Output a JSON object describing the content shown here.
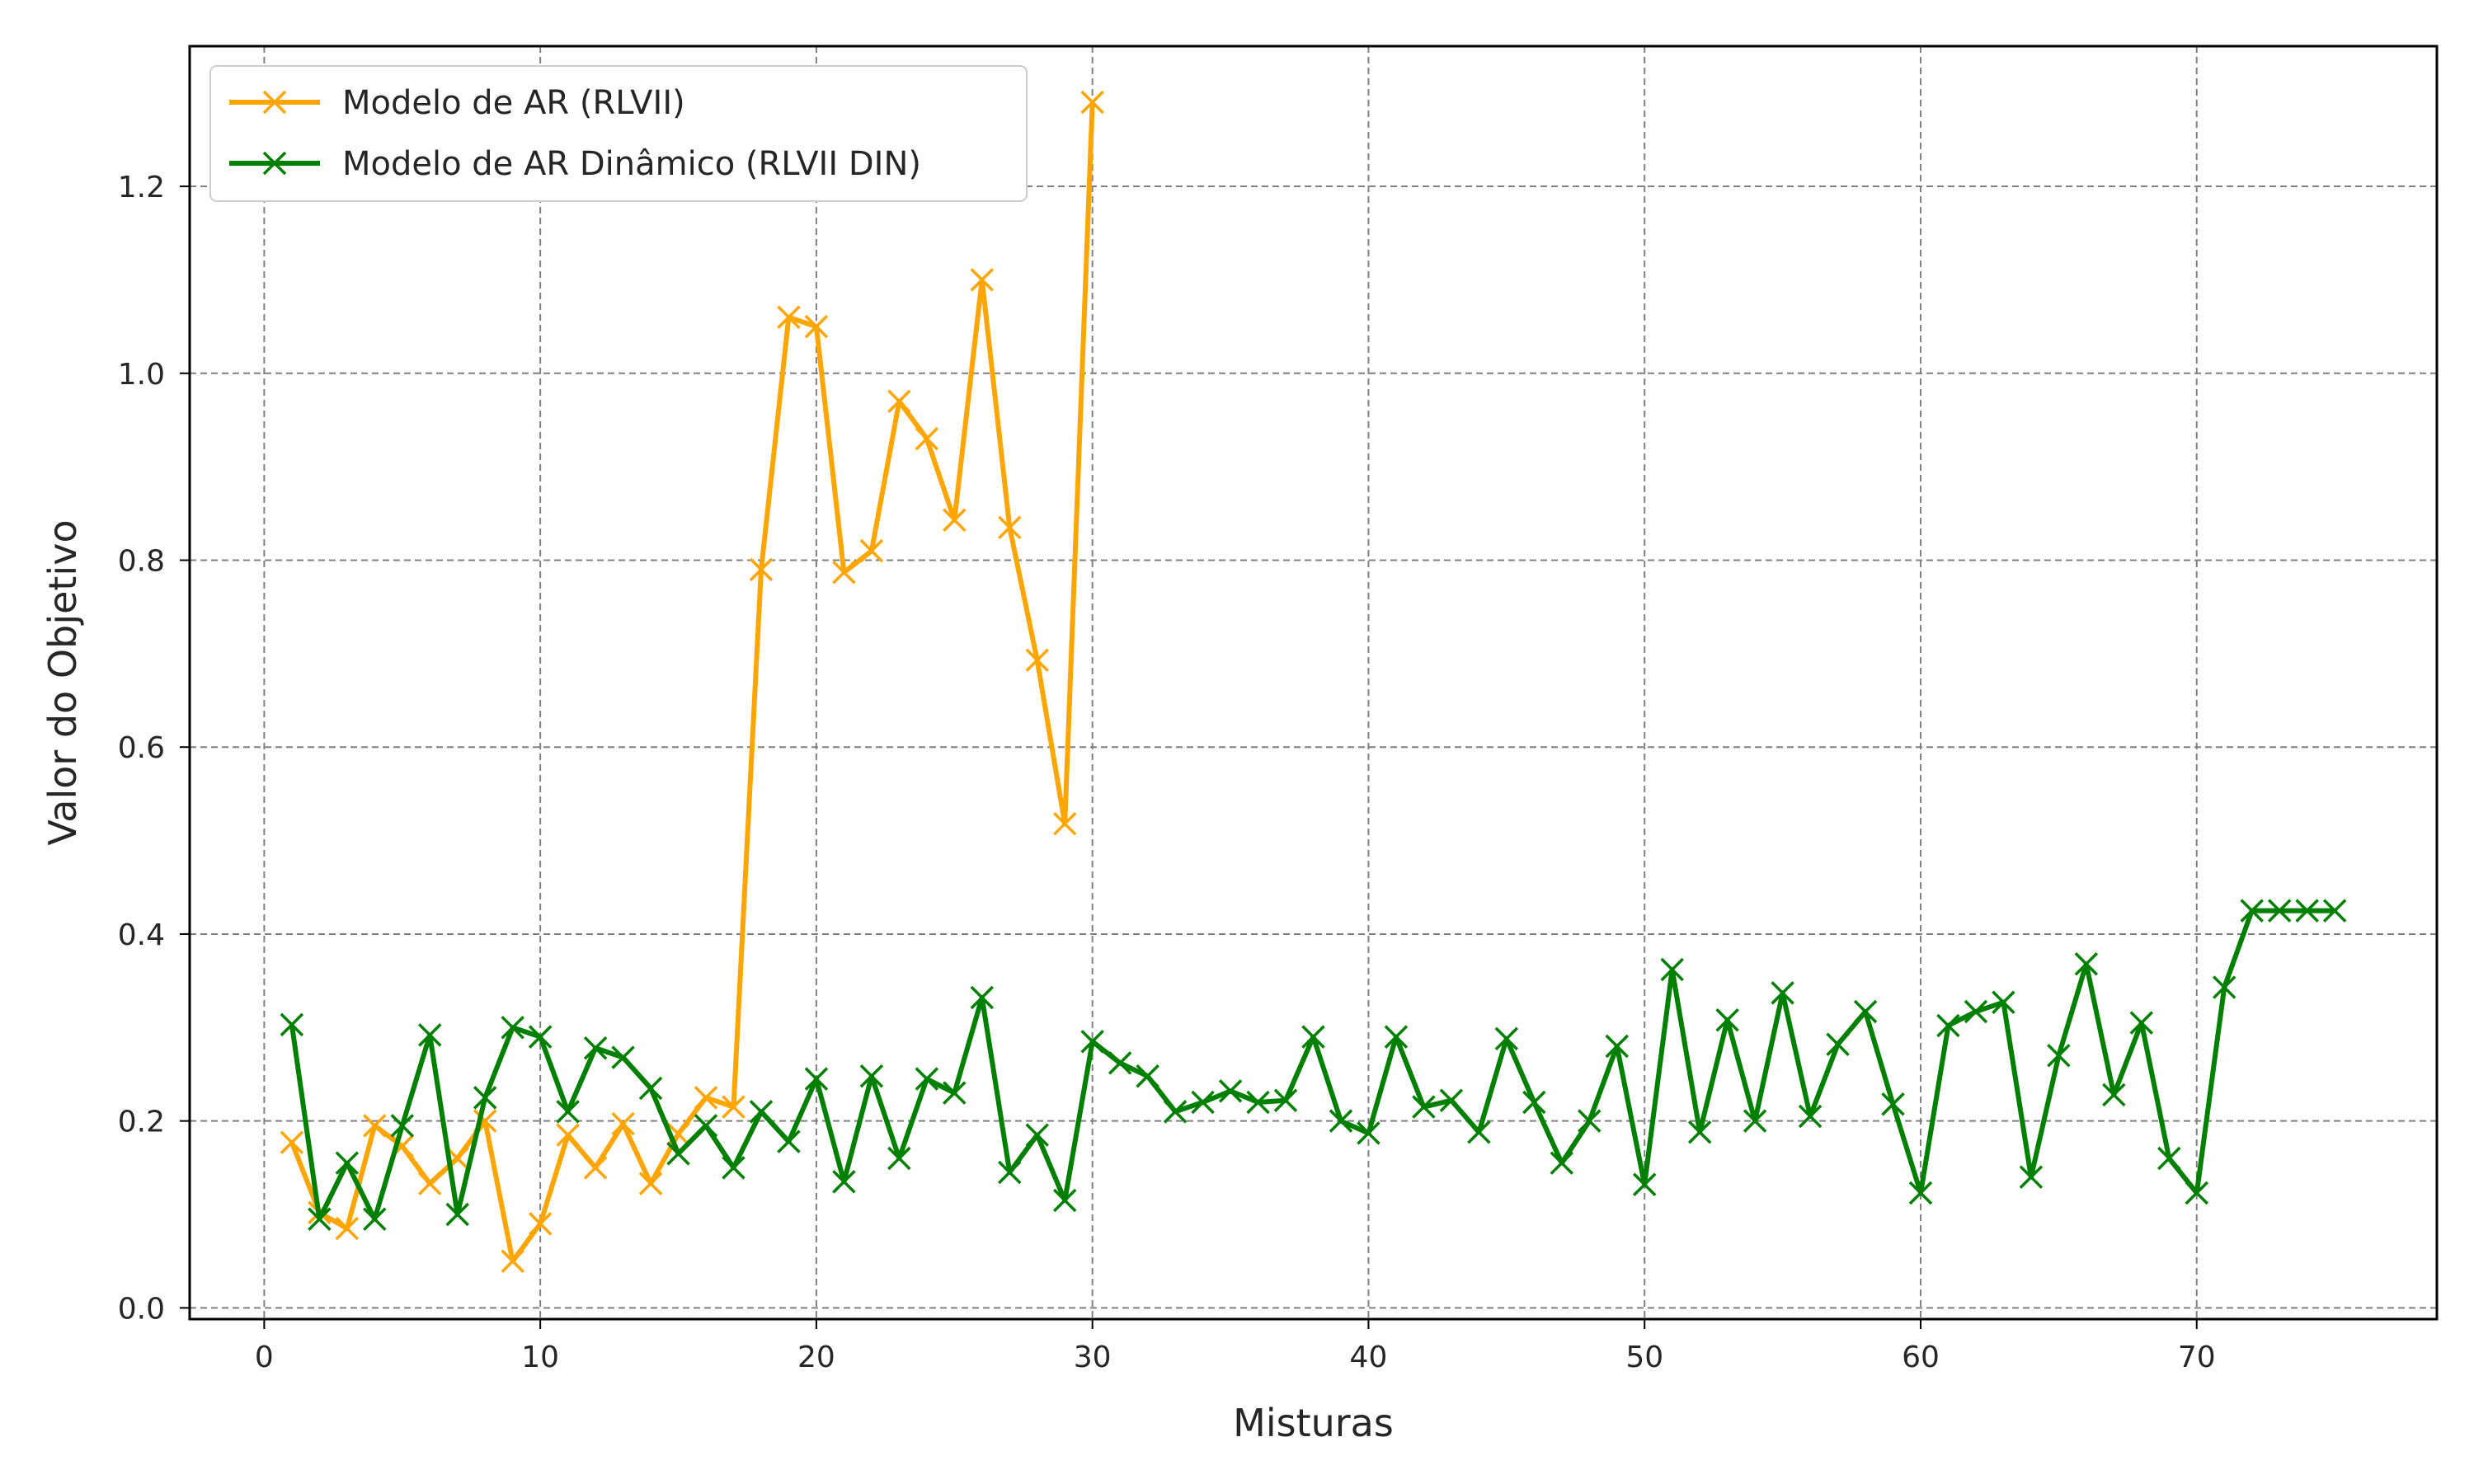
{
  "chart_data": {
    "type": "line",
    "title": "",
    "xlabel": "Misturas",
    "ylabel": "Valor do Objetivo",
    "xlim": [
      -2.7,
      78.7
    ],
    "ylim": [
      -0.012,
      1.35
    ],
    "xticks": [
      0,
      10,
      20,
      30,
      40,
      50,
      60,
      70
    ],
    "yticks": [
      0.0,
      0.2,
      0.4,
      0.6,
      0.8,
      1.0,
      1.2
    ],
    "ytick_labels": [
      "0.0",
      "0.2",
      "0.4",
      "0.6",
      "0.8",
      "1.0",
      "1.2"
    ],
    "grid": true,
    "legend_position": "top-left",
    "marker": "x",
    "series": [
      {
        "name": "Modelo de AR (RLVII)",
        "color": "#FFA500",
        "x": [
          1,
          2,
          3,
          4,
          5,
          6,
          7,
          8,
          9,
          10,
          11,
          12,
          13,
          14,
          15,
          16,
          17,
          18,
          19,
          20,
          21,
          22,
          23,
          24,
          25,
          26,
          27,
          28,
          29,
          30
        ],
        "y": [
          0.177,
          0.102,
          0.085,
          0.195,
          0.173,
          0.133,
          0.16,
          0.2,
          0.05,
          0.09,
          0.185,
          0.15,
          0.197,
          0.133,
          0.186,
          0.225,
          0.215,
          0.79,
          1.06,
          1.05,
          0.787,
          0.81,
          0.97,
          0.93,
          0.843,
          1.1,
          0.835,
          0.693,
          0.518,
          1.29
        ]
      },
      {
        "name": "Modelo de AR Dinâmico (RLVII DIN)",
        "color": "#008000",
        "x": [
          1,
          2,
          3,
          4,
          5,
          6,
          7,
          8,
          9,
          10,
          11,
          12,
          13,
          14,
          15,
          16,
          17,
          18,
          19,
          20,
          21,
          22,
          23,
          24,
          25,
          26,
          27,
          28,
          29,
          30,
          31,
          32,
          33,
          34,
          35,
          36,
          37,
          38,
          39,
          40,
          41,
          42,
          43,
          44,
          45,
          46,
          47,
          48,
          49,
          50,
          51,
          52,
          53,
          54,
          55,
          56,
          57,
          58,
          59,
          60,
          61,
          62,
          63,
          64,
          65,
          66,
          67,
          68,
          69,
          70,
          71,
          72,
          73,
          74,
          75
        ],
        "y": [
          0.303,
          0.095,
          0.155,
          0.095,
          0.195,
          0.292,
          0.1,
          0.225,
          0.3,
          0.29,
          0.21,
          0.278,
          0.268,
          0.235,
          0.165,
          0.195,
          0.15,
          0.21,
          0.178,
          0.245,
          0.135,
          0.248,
          0.16,
          0.245,
          0.23,
          0.332,
          0.145,
          0.185,
          0.115,
          0.285,
          0.262,
          0.248,
          0.21,
          0.22,
          0.232,
          0.22,
          0.222,
          0.29,
          0.2,
          0.187,
          0.29,
          0.215,
          0.222,
          0.188,
          0.288,
          0.22,
          0.155,
          0.2,
          0.28,
          0.132,
          0.362,
          0.188,
          0.308,
          0.2,
          0.337,
          0.205,
          0.282,
          0.317,
          0.218,
          0.123,
          0.302,
          0.317,
          0.327,
          0.14,
          0.27,
          0.368,
          0.228,
          0.305,
          0.16,
          0.123,
          0.343,
          0.425,
          0.425,
          0.425,
          0.425
        ]
      }
    ]
  }
}
